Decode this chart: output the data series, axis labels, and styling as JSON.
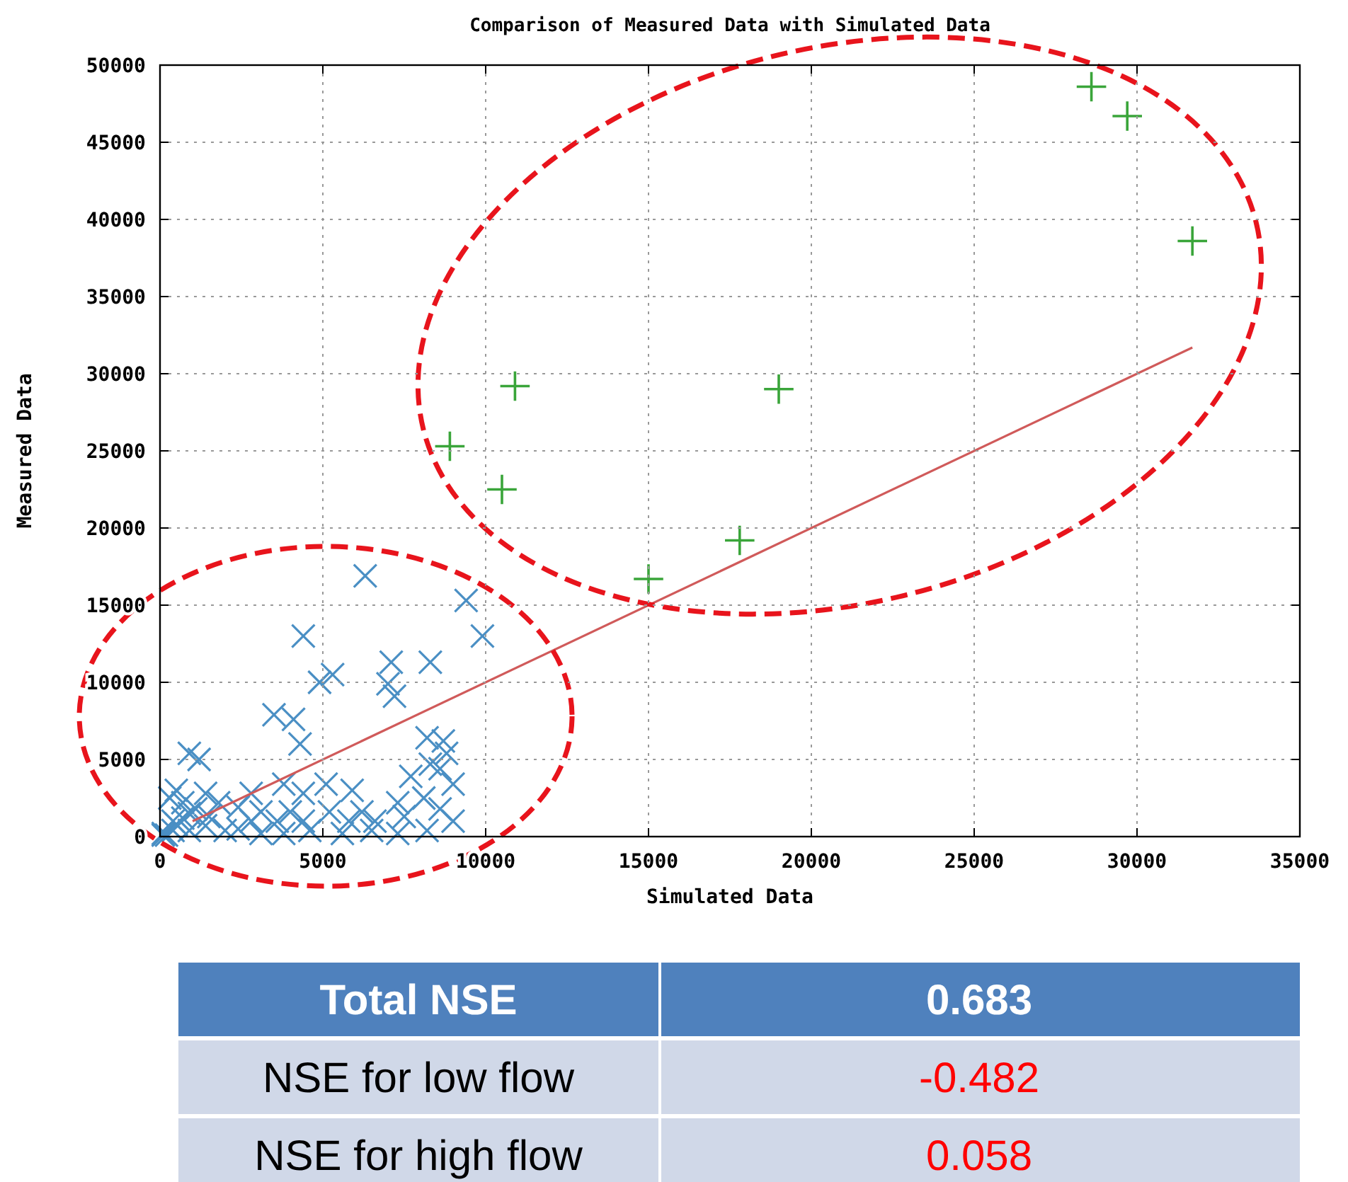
{
  "chart_data": {
    "type": "scatter",
    "title": "Comparison of Measured Data with Simulated Data",
    "xlabel": "Simulated Data",
    "ylabel": "Measured Data",
    "xlim": [
      0,
      35000
    ],
    "xticks": [
      0,
      5000,
      10000,
      15000,
      20000,
      25000,
      30000,
      35000
    ],
    "ylim": [
      0,
      50000
    ],
    "yticks": [
      0,
      5000,
      10000,
      15000,
      20000,
      25000,
      30000,
      35000,
      40000,
      45000,
      50000
    ],
    "grid": true,
    "series": [
      {
        "marker": "x",
        "color": "#4a8fc4",
        "x": [
          6300,
          9400,
          9900,
          4400,
          5300,
          4900,
          7100,
          8300,
          7000,
          7200,
          3500,
          4100,
          4300,
          900,
          1200,
          8200,
          8700,
          8800,
          8600,
          9000,
          8300,
          7700,
          7300,
          8100,
          8600,
          5900,
          6200,
          5100,
          4400,
          3800,
          2800,
          3100,
          5200,
          5800,
          6600,
          7500,
          9000,
          400,
          700,
          1400,
          1800,
          2400,
          2800,
          3600,
          4000,
          4400,
          100,
          400,
          900,
          1400,
          2000,
          2400,
          3100,
          3800,
          4600,
          5600,
          6500,
          7300,
          8200,
          100,
          200,
          500,
          700,
          900,
          1100,
          1500,
          300,
          500
        ],
        "values": [
          16900,
          15300,
          13000,
          13000,
          10500,
          10000,
          11300,
          11300,
          9900,
          9100,
          7900,
          7600,
          6000,
          5400,
          5000,
          6400,
          6200,
          5400,
          4400,
          3400,
          4700,
          3900,
          2200,
          2500,
          1800,
          3000,
          1600,
          3400,
          2800,
          3400,
          2800,
          1600,
          1600,
          1000,
          1000,
          1300,
          1000,
          1000,
          2200,
          2800,
          2200,
          1900,
          1000,
          1000,
          1600,
          1000,
          100,
          400,
          400,
          700,
          400,
          500,
          200,
          200,
          400,
          200,
          400,
          200,
          400,
          200,
          100,
          800,
          1200,
          1500,
          1800,
          1300,
          2500,
          3000
        ]
      },
      {
        "marker": "cross",
        "color": "#3aa53a",
        "x": [
          28600,
          29700,
          31700,
          10900,
          19000,
          8900,
          10500,
          17800,
          15000
        ],
        "values": [
          48600,
          46700,
          38600,
          29200,
          29000,
          25300,
          22500,
          19200,
          16700
        ]
      },
      {
        "type": "line",
        "color": "#d05a5a",
        "x": [
          1000,
          31700
        ],
        "values": [
          1000,
          31700
        ]
      }
    ],
    "annotations": [
      "Total NSE",
      "0.683",
      "NSE for low flow",
      "-0.482",
      "NSE for high flow",
      "0.058"
    ]
  }
}
